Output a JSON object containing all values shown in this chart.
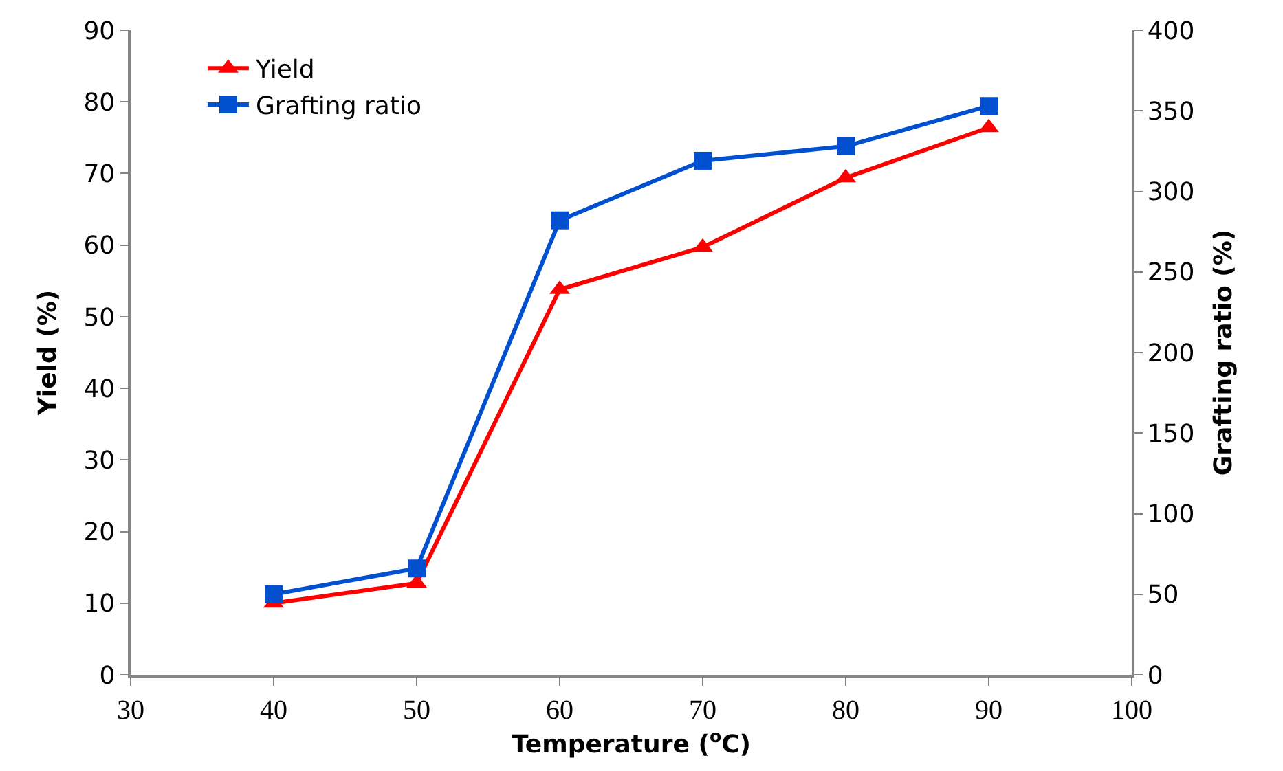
{
  "chart_data": {
    "type": "line",
    "xlabel": "Temperature ($^{o}$C)",
    "ylabel": "Yield (%)",
    "y2label": "Grafting ratio (%)",
    "x": [
      40,
      50,
      60,
      70,
      80,
      90
    ],
    "series": [
      {
        "name": "Yield",
        "color": "#ff0000",
        "marker": "triangle",
        "values": [
          10.0,
          12.8,
          53.8,
          59.7,
          69.4,
          76.4
        ]
      },
      {
        "name": "Grafting ratio",
        "color": "#0050d0",
        "marker": "square",
        "axis": "y2",
        "values": [
          50,
          66,
          282,
          319,
          328,
          353
        ]
      }
    ],
    "xlim": [
      30,
      100
    ],
    "xticks": [
      30,
      40,
      50,
      60,
      70,
      80,
      90,
      100
    ],
    "ylim": [
      0,
      90
    ],
    "yticks": [
      0,
      10,
      20,
      30,
      40,
      50,
      60,
      70,
      80,
      90
    ],
    "y2lim": [
      0,
      400
    ],
    "y2ticks": [
      0,
      50,
      100,
      150,
      200,
      250,
      300,
      350,
      400
    ],
    "legend": "top left",
    "line_style": "solid"
  }
}
